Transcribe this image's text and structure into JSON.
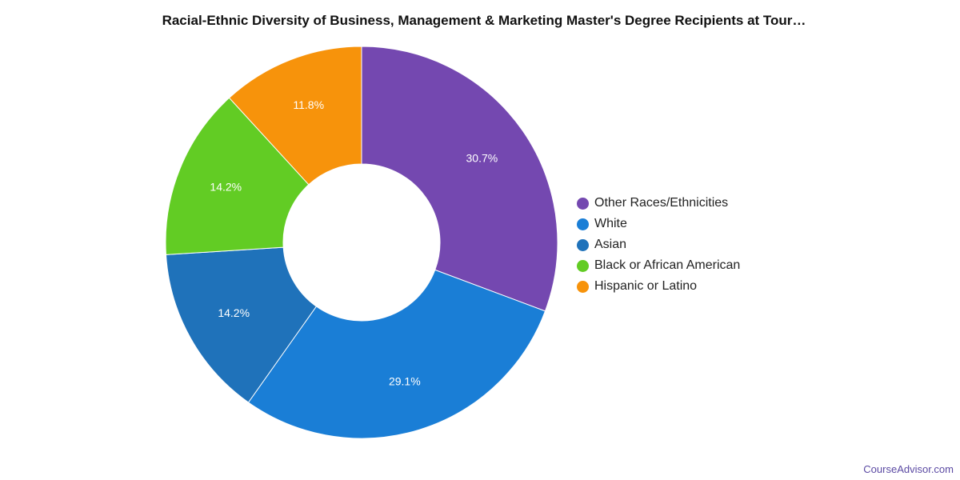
{
  "chart_data": {
    "type": "pie",
    "title": "Racial-Ethnic Diversity of Business, Management & Marketing Master's Degree Recipients at Tour…",
    "legend_position": "right",
    "slices": [
      {
        "label": "Other Races/Ethnicities",
        "value": 30.7,
        "display": "30.7%",
        "color": "#7448b0"
      },
      {
        "label": "White",
        "value": 29.1,
        "display": "29.1%",
        "color": "#1a7ed6"
      },
      {
        "label": "Asian",
        "value": 14.2,
        "display": "14.2%",
        "color": "#1f72ba"
      },
      {
        "label": "Black or African American",
        "value": 14.2,
        "display": "14.2%",
        "color": "#62cc24"
      },
      {
        "label": "Hispanic or Latino",
        "value": 11.8,
        "display": "11.8%",
        "color": "#f7930b"
      }
    ]
  },
  "watermark": "CourseAdvisor.com"
}
